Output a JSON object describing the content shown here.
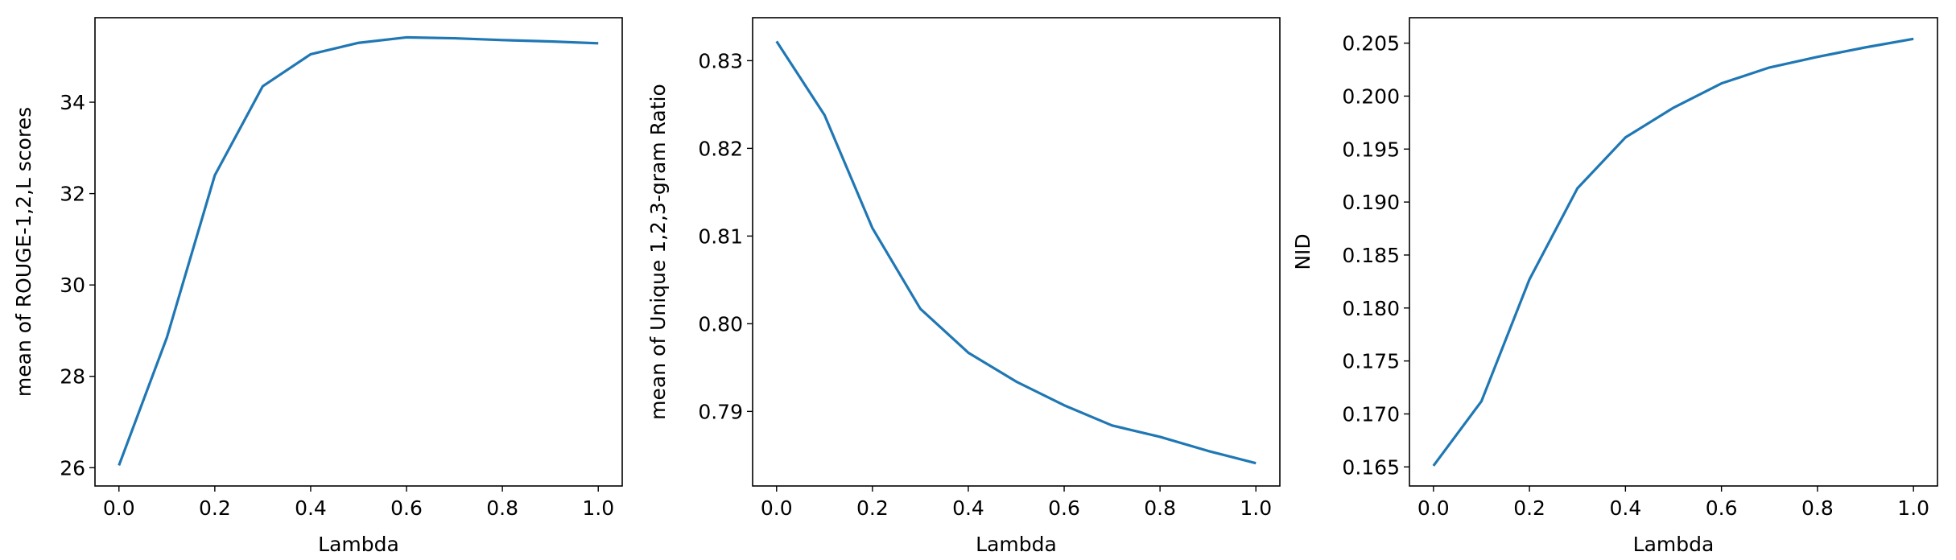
{
  "figure": {
    "background": "#ffffff",
    "line_color": "#1f77b4"
  },
  "chart_data": [
    {
      "type": "line",
      "title": "",
      "xlabel": "Lambda",
      "ylabel": "mean of ROUGE-1,2,L scores",
      "xlim": [
        -0.05,
        1.05
      ],
      "ylim": [
        25.6,
        35.85
      ],
      "xticks": [
        0.0,
        0.2,
        0.4,
        0.6,
        0.8,
        1.0
      ],
      "xtick_labels": [
        "0.0",
        "0.2",
        "0.4",
        "0.6",
        "0.8",
        "1.0"
      ],
      "yticks": [
        26,
        28,
        30,
        32,
        34
      ],
      "ytick_labels": [
        "26",
        "28",
        "30",
        "32",
        "34"
      ],
      "grid": false,
      "series": [
        {
          "x": [
            0.0,
            0.1,
            0.2,
            0.3,
            0.4,
            0.5,
            0.6,
            0.7,
            0.8,
            0.9,
            1.0
          ],
          "values": [
            26.05,
            28.85,
            32.4,
            34.35,
            35.05,
            35.3,
            35.42,
            35.4,
            35.36,
            35.33,
            35.29
          ]
        }
      ]
    },
    {
      "type": "line",
      "title": "",
      "xlabel": "Lambda",
      "ylabel": "mean of Unique 1,2,3-gram Ratio",
      "xlim": [
        -0.05,
        1.05
      ],
      "ylim": [
        0.7815,
        0.8349
      ],
      "xticks": [
        0.0,
        0.2,
        0.4,
        0.6,
        0.8,
        1.0
      ],
      "xtick_labels": [
        "0.0",
        "0.2",
        "0.4",
        "0.6",
        "0.8",
        "1.0"
      ],
      "yticks": [
        0.79,
        0.8,
        0.81,
        0.82,
        0.83
      ],
      "ytick_labels": [
        "0.79",
        "0.80",
        "0.81",
        "0.82",
        "0.83"
      ],
      "grid": false,
      "series": [
        {
          "x": [
            0.0,
            0.1,
            0.2,
            0.3,
            0.4,
            0.5,
            0.6,
            0.7,
            0.8,
            0.9,
            1.0
          ],
          "values": [
            0.8322,
            0.8238,
            0.8109,
            0.8017,
            0.7967,
            0.7934,
            0.7907,
            0.7884,
            0.7871,
            0.7855,
            0.7841
          ]
        }
      ]
    },
    {
      "type": "line",
      "title": "",
      "xlabel": "Lambda",
      "ylabel": "NID",
      "xlim": [
        -0.05,
        1.05
      ],
      "ylim": [
        0.1632,
        0.2074
      ],
      "xticks": [
        0.0,
        0.2,
        0.4,
        0.6,
        0.8,
        1.0
      ],
      "xtick_labels": [
        "0.0",
        "0.2",
        "0.4",
        "0.6",
        "0.8",
        "1.0"
      ],
      "yticks": [
        0.165,
        0.17,
        0.175,
        0.18,
        0.185,
        0.19,
        0.195,
        0.2,
        0.205
      ],
      "ytick_labels": [
        "0.165",
        "0.170",
        "0.175",
        "0.180",
        "0.185",
        "0.190",
        "0.195",
        "0.200",
        "0.205"
      ],
      "grid": false,
      "series": [
        {
          "x": [
            0.0,
            0.1,
            0.2,
            0.3,
            0.4,
            0.5,
            0.6,
            0.7,
            0.8,
            0.9,
            1.0
          ],
          "values": [
            0.1651,
            0.1712,
            0.1827,
            0.1913,
            0.1961,
            0.1989,
            0.2012,
            0.2027,
            0.2037,
            0.2046,
            0.2054
          ]
        }
      ]
    }
  ]
}
